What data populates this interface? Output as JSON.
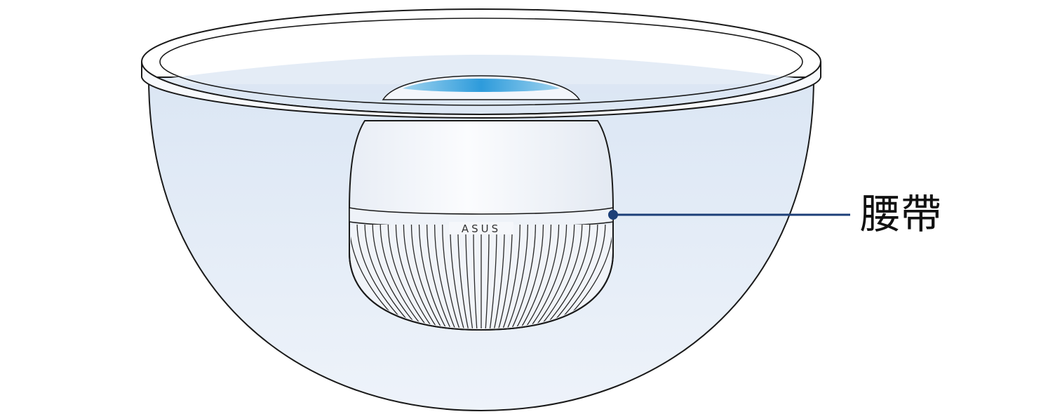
{
  "diagram": {
    "brand_text": "ASUS",
    "callout": {
      "label": "腰帶"
    }
  },
  "colors": {
    "outline": "#1a1a1a",
    "water_fill": "#e6eef8",
    "rim_fill": "#f7f9fc",
    "device_body": "#f5f7fb",
    "led_glow": "#2d9bdb",
    "callout_accent": "#1c3f78"
  }
}
